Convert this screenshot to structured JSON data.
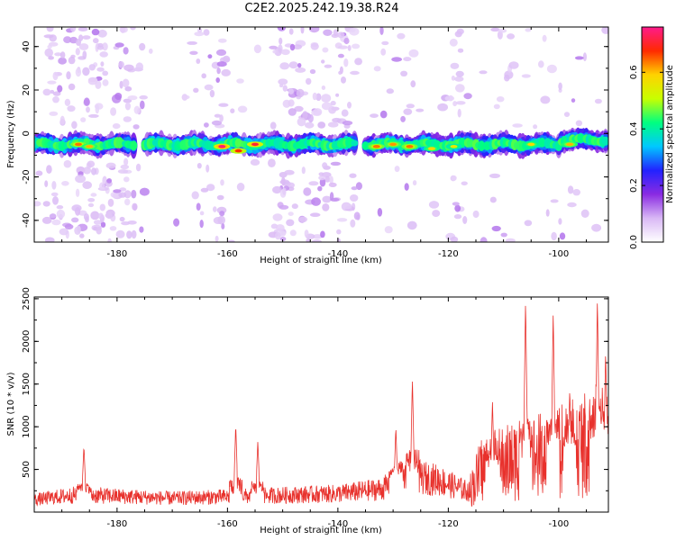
{
  "title": "C2E2.2025.242.19.38.R24",
  "colors": {
    "snr_line": "#e8312c",
    "colormap": [
      "#ffffff",
      "#d9b8f5",
      "#8a2be2",
      "#2222ff",
      "#00c8ff",
      "#00ff80",
      "#c8ff00",
      "#ffd200",
      "#ff2a00",
      "#ff1a8c"
    ]
  },
  "chart_data": [
    {
      "id": "spectrogram",
      "type": "heatmap",
      "title": "C2E2.2025.242.19.38.R24",
      "xlabel": "Height of straight line (km)",
      "ylabel": "Frequency (Hz)",
      "xlim": [
        -195,
        -91
      ],
      "ylim": [
        -50,
        49
      ],
      "xticks": [
        -180,
        -160,
        -140,
        -120,
        -100
      ],
      "yticks": [
        -40,
        -20,
        0,
        20,
        40
      ],
      "colorbar": {
        "label": "Normalized spectral amplitude",
        "range": [
          0.0,
          0.76
        ],
        "ticks": [
          0.0,
          0.2,
          0.4,
          0.6
        ]
      },
      "band_center_hz": -5,
      "band_halfwidth_hz": 4,
      "peaks": [
        {
          "x": -187,
          "f": -5,
          "a": 0.62
        },
        {
          "x": -185,
          "f": -6,
          "a": 0.58
        },
        {
          "x": -161,
          "f": -6,
          "a": 0.74
        },
        {
          "x": -158,
          "f": -8,
          "a": 0.66
        },
        {
          "x": -155,
          "f": -5,
          "a": 0.7
        },
        {
          "x": -133,
          "f": -6,
          "a": 0.62
        },
        {
          "x": -130,
          "f": -5,
          "a": 0.6
        },
        {
          "x": -127,
          "f": -6,
          "a": 0.62
        },
        {
          "x": -123,
          "f": -7,
          "a": 0.55
        },
        {
          "x": -119,
          "f": -6,
          "a": 0.52
        },
        {
          "x": -105,
          "f": -5,
          "a": 0.55
        },
        {
          "x": -98,
          "f": -5,
          "a": 0.58
        }
      ]
    },
    {
      "id": "snr",
      "type": "line",
      "xlabel": "Height of straight line (km)",
      "ylabel": "SNR (10 * v/v)",
      "xlim": [
        -195,
        -91
      ],
      "ylim": [
        0,
        2520
      ],
      "xticks": [
        -180,
        -160,
        -140,
        -120,
        -100
      ],
      "yticks": [
        500,
        1000,
        1500,
        2000,
        2500
      ],
      "series_color": "#e8312c",
      "baseline": [
        [
          -195,
          160
        ],
        [
          -187,
          230
        ],
        [
          -185,
          220
        ],
        [
          -170,
          180
        ],
        [
          -160,
          200
        ],
        [
          -150,
          220
        ],
        [
          -140,
          240
        ],
        [
          -132,
          300
        ],
        [
          -128,
          480
        ],
        [
          -122,
          420
        ],
        [
          -116,
          260
        ],
        [
          -114,
          500
        ],
        [
          -108,
          600
        ],
        [
          -100,
          700
        ],
        [
          -91,
          900
        ]
      ],
      "spikes": [
        {
          "x": -186,
          "y": 780
        },
        {
          "x": -158.5,
          "y": 1030
        },
        {
          "x": -154.5,
          "y": 830
        },
        {
          "x": -129.5,
          "y": 1000
        },
        {
          "x": -126.5,
          "y": 1560
        },
        {
          "x": -112,
          "y": 1300
        },
        {
          "x": -106,
          "y": 2490
        },
        {
          "x": -101,
          "y": 2350
        },
        {
          "x": -98,
          "y": 1450
        },
        {
          "x": -93,
          "y": 2520
        },
        {
          "x": -91.5,
          "y": 1900
        }
      ]
    }
  ]
}
